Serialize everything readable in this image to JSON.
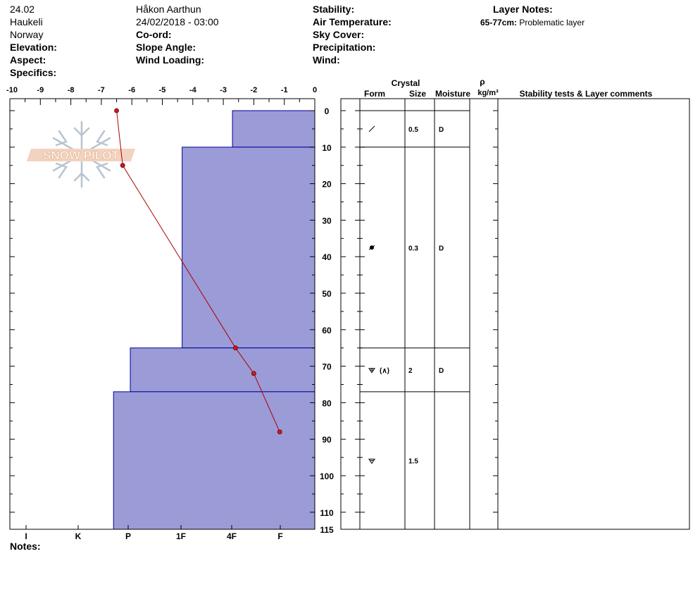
{
  "header": {
    "col1": [
      "24.02",
      "Haukeli",
      "Norway"
    ],
    "col2": [
      "Håkon Aarthun",
      "24/02/2018 - 03:00"
    ],
    "col1_labels": [
      "Elevation:",
      "Aspect:",
      "Specifics:"
    ],
    "col2_labels": [
      "Co-ord:",
      "Slope Angle:",
      "Wind Loading:"
    ],
    "col3_labels": [
      "Stability:",
      "Air Temperature:",
      "Sky Cover:",
      "Precipitation:",
      "Wind:"
    ],
    "layer_notes_title": "Layer Notes:",
    "layer_note": {
      "range": "65-77cm:",
      "text": "Problematic layer"
    }
  },
  "logo_text": "SNOW PILOT",
  "notes_label": "Notes:",
  "table_headers": {
    "crystal": "Crystal",
    "form": "Form",
    "size": "Size",
    "moisture": "Moisture",
    "rho": "ρ",
    "density_unit": "kg/m³",
    "comments": "Stability tests & Layer comments"
  },
  "chart_data": {
    "type": "area",
    "temperature_axis": {
      "ticks": [
        "-10",
        "-9",
        "-8",
        "-7",
        "-6",
        "-5",
        "-4",
        "-3",
        "-2",
        "-1",
        "0"
      ],
      "range": [
        -10,
        0
      ]
    },
    "depth_axis": {
      "ticks": [
        "0",
        "10",
        "20",
        "30",
        "40",
        "50",
        "60",
        "70",
        "80",
        "90",
        "100",
        "110",
        "115"
      ],
      "range": [
        0,
        115
      ]
    },
    "hardness_axis": {
      "labels": [
        "I",
        "K",
        "P",
        "1F",
        "4F",
        "F"
      ]
    },
    "hardness_profile": [
      {
        "top": 0,
        "bottom": 10,
        "temp_extent": -2.7
      },
      {
        "top": 10,
        "bottom": 65,
        "temp_extent": -4.35
      },
      {
        "top": 65,
        "bottom": 77,
        "temp_extent": -6.05
      },
      {
        "top": 77,
        "bottom": 115,
        "temp_extent": -6.6
      }
    ],
    "temperature_profile": [
      {
        "depth": 0,
        "temp": -6.5
      },
      {
        "depth": 15,
        "temp": -6.3
      },
      {
        "depth": 65,
        "temp": -2.6
      },
      {
        "depth": 72,
        "temp": -2.0
      },
      {
        "depth": 88,
        "temp": -1.15
      }
    ],
    "layers": [
      {
        "top": 0,
        "bottom": 10,
        "form_icon": "precipitation-particles-icon",
        "size": "0.5",
        "moisture": "D"
      },
      {
        "top": 10,
        "bottom": 65,
        "form_icon": "rounded-grain-icon",
        "size": "0.3",
        "moisture": "D"
      },
      {
        "top": 65,
        "bottom": 77,
        "form_icon": "depth-hoar-faceted-icon",
        "size": "2",
        "moisture": "D",
        "form_extra": "(∧)"
      },
      {
        "top": 77,
        "bottom": 115,
        "form_icon": "depth-hoar-icon",
        "size": "1.5",
        "moisture": ""
      }
    ],
    "colors": {
      "hardness_fill": "#9b9bd7",
      "hardness_edge": "#000099",
      "temp_line": "#aa0000"
    }
  }
}
